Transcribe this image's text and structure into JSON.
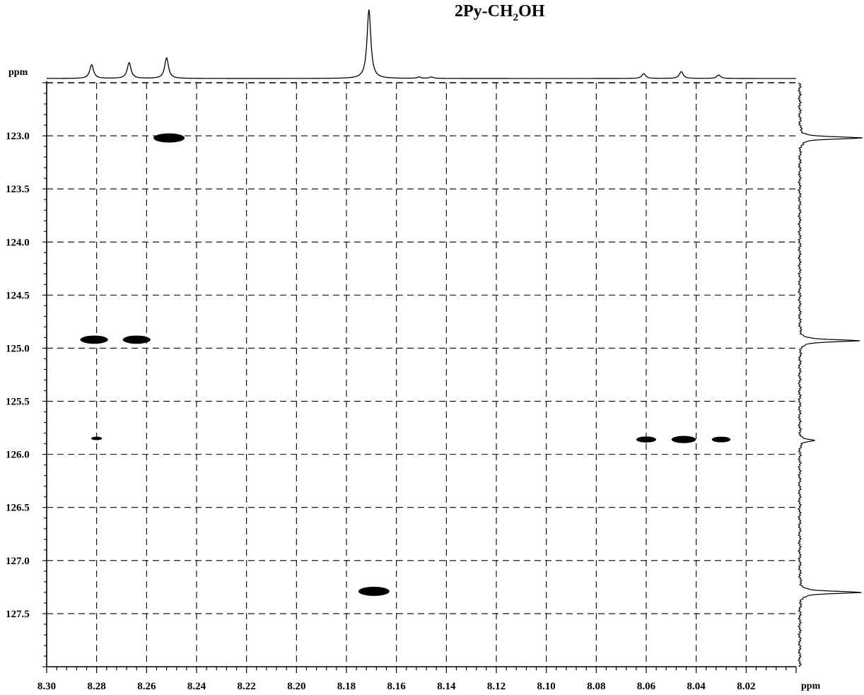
{
  "chart_data": {
    "type": "heatmap",
    "subtype": "2D NMR correlation (HSQC-type) with 1D projections",
    "title_parts": [
      "2Py-CH",
      "2",
      "OH"
    ],
    "x_unit_label": "ppm",
    "y_unit_label": "ppm",
    "x_axis": {
      "range": [
        8.3,
        8.0
      ],
      "reversed": true,
      "ticks": [
        "8.30",
        "8.28",
        "8.26",
        "8.24",
        "8.22",
        "8.20",
        "8.18",
        "8.16",
        "8.14",
        "8.12",
        "8.10",
        "8.08",
        "8.06",
        "8.04",
        "8.02"
      ],
      "tick_values": [
        8.3,
        8.28,
        8.26,
        8.24,
        8.22,
        8.2,
        8.18,
        8.16,
        8.14,
        8.12,
        8.1,
        8.08,
        8.06,
        8.04,
        8.02
      ]
    },
    "y_axis": {
      "range": [
        122.5,
        128.0
      ],
      "reversed": true,
      "ticks": [
        "123.0",
        "123.5",
        "124.0",
        "124.5",
        "125.0",
        "125.5",
        "126.0",
        "126.5",
        "127.0",
        "127.5"
      ],
      "tick_values": [
        123.0,
        123.5,
        124.0,
        124.5,
        125.0,
        125.5,
        126.0,
        126.5,
        127.0,
        127.5
      ]
    },
    "grid": true,
    "grid_style": "dashed",
    "cross_peaks": [
      {
        "x": 8.251,
        "y": 123.02,
        "intensity": 1.0
      },
      {
        "x": 8.281,
        "y": 124.92,
        "intensity": 0.85
      },
      {
        "x": 8.264,
        "y": 124.92,
        "intensity": 0.85
      },
      {
        "x": 8.169,
        "y": 127.29,
        "intensity": 1.0
      },
      {
        "x": 8.06,
        "y": 125.86,
        "intensity": 0.5
      },
      {
        "x": 8.045,
        "y": 125.86,
        "intensity": 0.7
      },
      {
        "x": 8.03,
        "y": 125.86,
        "intensity": 0.45
      },
      {
        "x": 8.28,
        "y": 125.85,
        "intensity": 0.1
      }
    ],
    "top_projection": {
      "peaks": [
        {
          "x": 8.282,
          "height": 0.2
        },
        {
          "x": 8.267,
          "height": 0.23
        },
        {
          "x": 8.252,
          "height": 0.3
        },
        {
          "x": 8.171,
          "height": 1.0
        },
        {
          "x": 8.151,
          "height": 0.02
        },
        {
          "x": 8.146,
          "height": 0.02
        },
        {
          "x": 8.061,
          "height": 0.07
        },
        {
          "x": 8.046,
          "height": 0.1
        },
        {
          "x": 8.031,
          "height": 0.05
        }
      ]
    },
    "side_projection": {
      "peaks": [
        {
          "y": 123.02,
          "height": 1.0
        },
        {
          "y": 124.93,
          "height": 0.95
        },
        {
          "y": 125.87,
          "height": 0.25
        },
        {
          "y": 127.3,
          "height": 1.0
        }
      ]
    }
  }
}
